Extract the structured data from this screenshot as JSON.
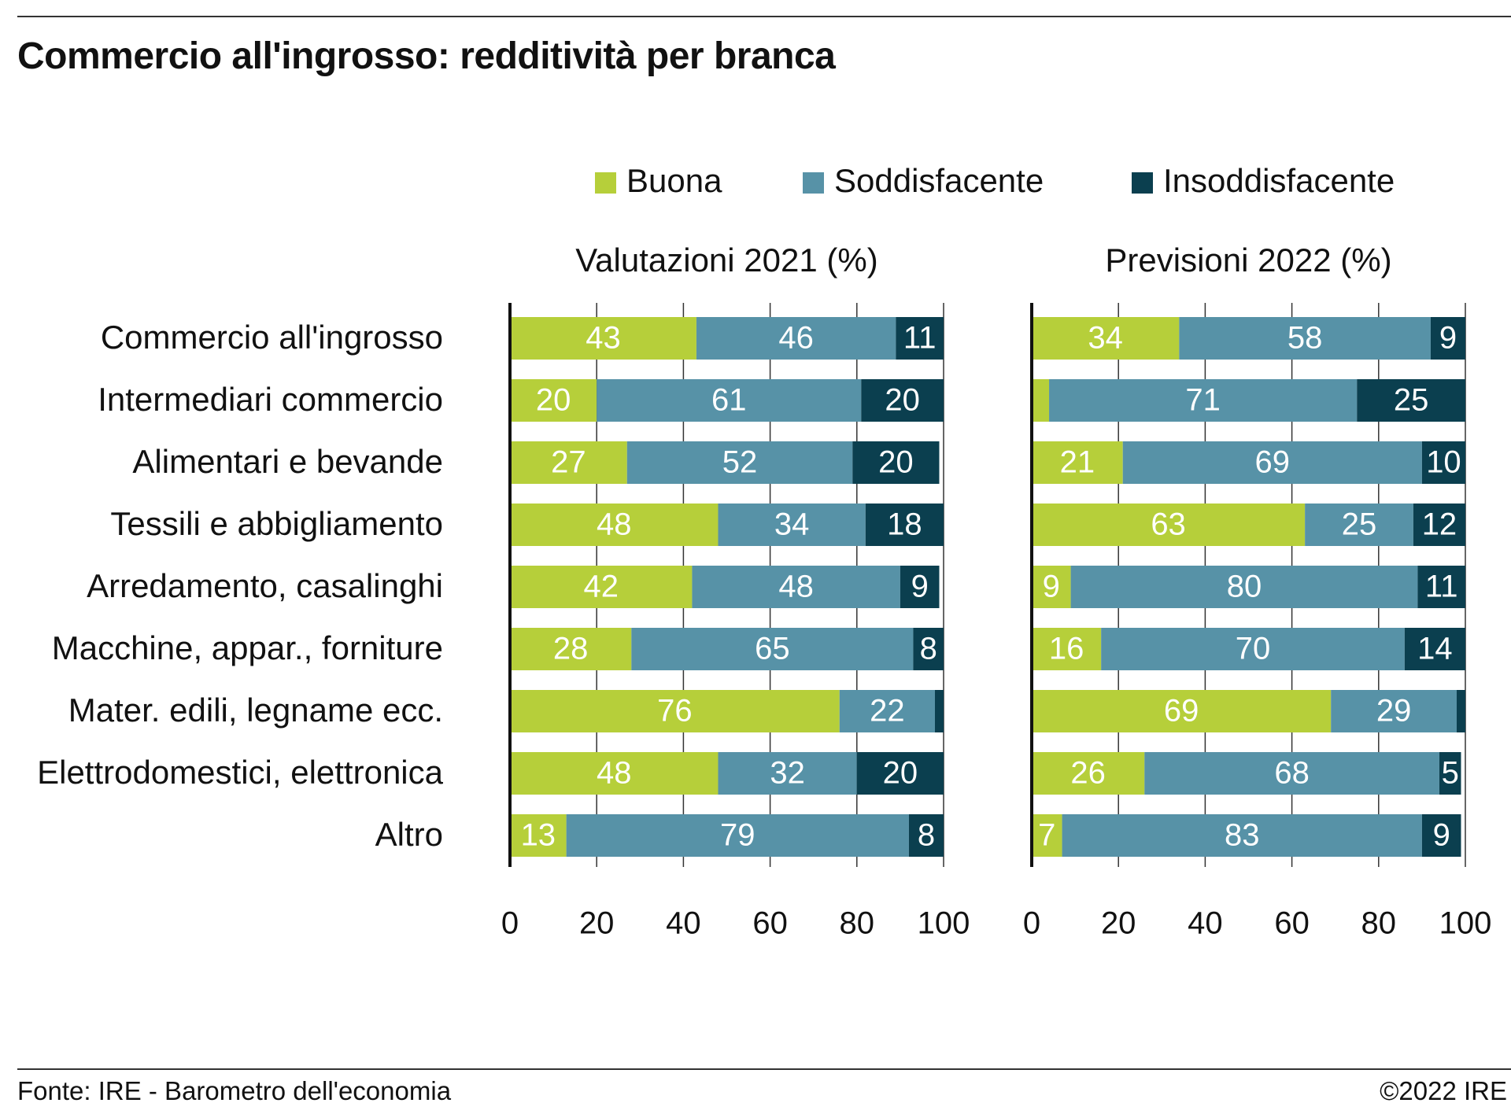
{
  "title": "Commercio all'ingrosso: redditività per branca",
  "source": "Fonte: IRE - Barometro dell'economia",
  "copyright": "©2022 IRE",
  "colors": {
    "buona": "#b6cf3a",
    "soddisfacente": "#5792a7",
    "insoddisfacente": "#0b3f4f",
    "label_on_light": "#ffffff",
    "axis": "#111111",
    "grid": "#333333"
  },
  "chart_data": {
    "type": "bar",
    "orientation": "horizontal",
    "stacked": true,
    "legend_position": "top",
    "categories": [
      "Commercio all'ingrosso",
      "Intermediari commercio",
      "Alimentari e bevande",
      "Tessili e abbigliamento",
      "Arredamento, casalinghi",
      "Macchine, appar., forniture",
      "Mater. edili, legname ecc.",
      "Elettrodomestici, elettronica",
      "Altro"
    ],
    "series_names": [
      "Buona",
      "Soddisfacente",
      "Insoddisfacente"
    ],
    "xlim": [
      0,
      100
    ],
    "xticks": [
      "0",
      "20",
      "40",
      "60",
      "80",
      "100"
    ],
    "panels": [
      {
        "title": "Valutazioni 2021 (%)",
        "series": [
          {
            "name": "Buona",
            "values": [
              43,
              20,
              27,
              48,
              42,
              28,
              76,
              48,
              13
            ],
            "labels": [
              "43",
              "20",
              "27",
              "48",
              "42",
              "28",
              "76",
              "48",
              "13"
            ]
          },
          {
            "name": "Soddisfacente",
            "values": [
              46,
              61,
              52,
              34,
              48,
              65,
              22,
              32,
              79
            ],
            "labels": [
              "46",
              "61",
              "52",
              "34",
              "48",
              "65",
              "22",
              "32",
              "79"
            ]
          },
          {
            "name": "Insoddisfacente",
            "values": [
              11,
              20,
              20,
              18,
              9,
              8,
              2,
              20,
              8
            ],
            "labels": [
              "11",
              "20",
              "20",
              "18",
              "9",
              "8",
              "",
              "20",
              "8"
            ]
          }
        ]
      },
      {
        "title": "Previsioni 2022 (%)",
        "series": [
          {
            "name": "Buona",
            "values": [
              34,
              4,
              21,
              63,
              9,
              16,
              69,
              26,
              7
            ],
            "labels": [
              "34",
              "",
              "21",
              "63",
              "9",
              "16",
              "69",
              "26",
              "7"
            ]
          },
          {
            "name": "Soddisfacente",
            "values": [
              58,
              71,
              69,
              25,
              80,
              70,
              29,
              68,
              83
            ],
            "labels": [
              "58",
              "71",
              "69",
              "25",
              "80",
              "70",
              "29",
              "68",
              "83"
            ]
          },
          {
            "name": "Insoddisfacente",
            "values": [
              9,
              25,
              10,
              12,
              11,
              14,
              2,
              5,
              9
            ],
            "labels": [
              "9",
              "25",
              "10",
              "12",
              "11",
              "14",
              "",
              "5",
              "9"
            ]
          }
        ]
      }
    ]
  }
}
